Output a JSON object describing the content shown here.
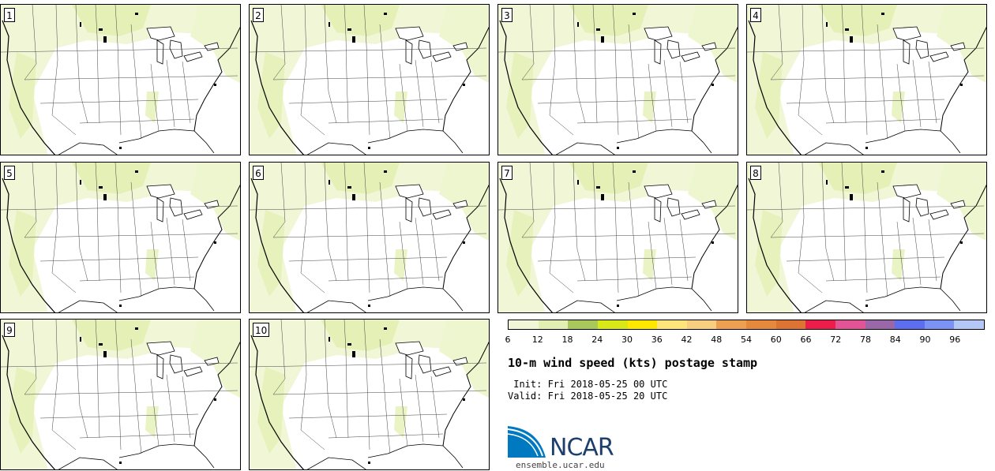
{
  "panels": [
    {
      "label": "1"
    },
    {
      "label": "2"
    },
    {
      "label": "3"
    },
    {
      "label": "4"
    },
    {
      "label": "5"
    },
    {
      "label": "6"
    },
    {
      "label": "7"
    },
    {
      "label": "8"
    },
    {
      "label": "9"
    },
    {
      "label": "10"
    }
  ],
  "colorbar": {
    "ticks": [
      "6",
      "12",
      "18",
      "24",
      "30",
      "36",
      "42",
      "48",
      "54",
      "60",
      "66",
      "72",
      "78",
      "84",
      "90",
      "96"
    ],
    "colors": [
      "#f1f7d6",
      "#e2efb3",
      "#a8c85c",
      "#d9e817",
      "#ffe800",
      "#fde57c",
      "#f8cf80",
      "#eda052",
      "#e58a3c",
      "#dd7434",
      "#ec1d4a",
      "#e25496",
      "#9a67a8",
      "#5d6ef0",
      "#7b93f5",
      "#b4c8f7"
    ]
  },
  "title": "10-m wind speed (kts) postage stamp",
  "init": " Init: Fri 2018-05-25 00 UTC",
  "valid": "Valid: Fri 2018-05-25 20 UTC",
  "logo": {
    "text": "NCAR",
    "url": "ensemble.ucar.edu",
    "brand_color": "#0079c1"
  }
}
